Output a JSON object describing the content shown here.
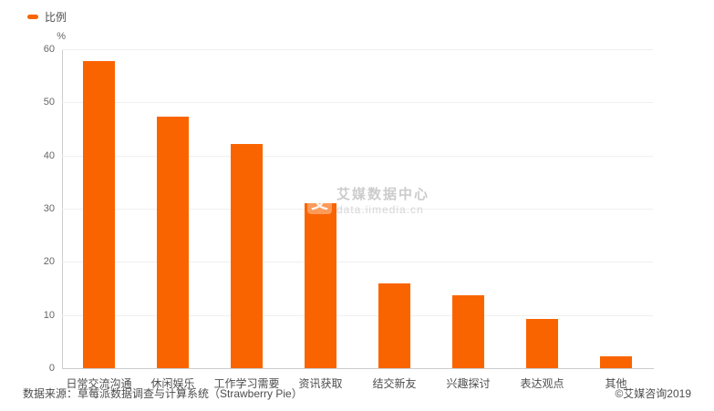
{
  "legend": {
    "label": "比例",
    "color": "#fa6400"
  },
  "chart_data": {
    "type": "bar",
    "title": "",
    "series_name": "比例",
    "categories": [
      "日常交流沟通",
      "休闲娱乐",
      "工作学习需要",
      "资讯获取",
      "结交新友",
      "兴趣探讨",
      "表达观点",
      "其他"
    ],
    "values": [
      57.8,
      47.4,
      42.2,
      31.0,
      16.0,
      13.8,
      9.2,
      2.3
    ],
    "xlabel": "",
    "ylabel": "%",
    "ylim": [
      0,
      60
    ],
    "y_ticks": [
      0,
      10,
      20,
      30,
      40,
      50,
      60
    ],
    "grid": true,
    "legend_position": "top-left",
    "bar_color": "#fa6400"
  },
  "watermark": {
    "logo_glyph": "艾",
    "title": "艾媒数据中心",
    "url": "data.iimedia.cn"
  },
  "footer": {
    "source": "数据来源：草莓派数据调查与计算系统（Strawberry Pie）",
    "copyright": "©艾媒咨询2019"
  }
}
